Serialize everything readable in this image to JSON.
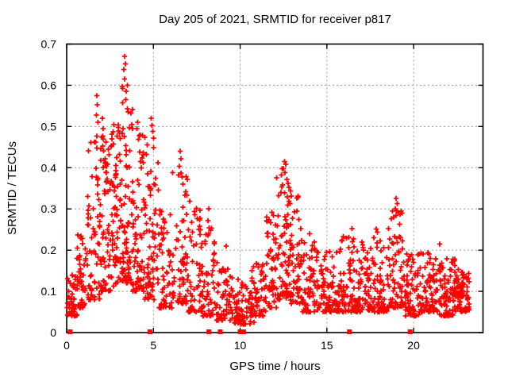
{
  "page": {
    "background": "#ffffff"
  },
  "chart_data": {
    "type": "scatter",
    "title": "Day 205 of 2021, SRMTID for receiver p817",
    "xlabel": "GPS time / hours",
    "ylabel": "SRMTID / TECUs",
    "xlim": [
      0,
      24
    ],
    "ylim": [
      0,
      0.7
    ],
    "xtick_values": [
      0,
      5,
      10,
      15,
      20
    ],
    "xtick_labels": [
      "0",
      "5",
      "10",
      "15",
      "20"
    ],
    "ytick_values": [
      0,
      0.1,
      0.2,
      0.3,
      0.4,
      0.5,
      0.6,
      0.7
    ],
    "ytick_labels": [
      "0",
      "0.1",
      "0.2",
      "0.3",
      "0.4",
      "0.5",
      "0.6",
      "0.7"
    ],
    "grid": {
      "show": true,
      "color": "#9b9b9b",
      "dash": "2 3"
    },
    "axis_color": "#000000",
    "marker": {
      "shape": "plus",
      "color": "#ff0000",
      "size": 7,
      "stroke_width": 1.8
    },
    "zero_axis_markers": {
      "shape": "filled-square",
      "color": "#ff0000",
      "size": 6,
      "x_hours": [
        0.2,
        4.8,
        8.2,
        8.85,
        10.0,
        10.1,
        10.2,
        16.3,
        19.8
      ]
    },
    "seed": 2021205,
    "density_segments": [
      {
        "x0": 0.03,
        "x1": 0.6,
        "n": 45,
        "y_min": 0.04,
        "y_max": 0.14,
        "skew": 1.6
      },
      {
        "x0": 0.6,
        "x1": 1.2,
        "n": 50,
        "y_min": 0.06,
        "y_max": 0.24,
        "skew": 1.8
      },
      {
        "x0": 1.2,
        "x1": 1.9,
        "n": 62,
        "y_min": 0.08,
        "y_max": 0.5,
        "skew": 1.9
      },
      {
        "x0": 1.9,
        "x1": 2.6,
        "n": 78,
        "y_min": 0.1,
        "y_max": 0.48,
        "skew": 1.5
      },
      {
        "x0": 2.6,
        "x1": 3.2,
        "n": 72,
        "y_min": 0.1,
        "y_max": 0.52,
        "skew": 1.5
      },
      {
        "x0": 3.2,
        "x1": 3.8,
        "n": 72,
        "y_min": 0.12,
        "y_max": 0.6,
        "skew": 1.6
      },
      {
        "x0": 3.8,
        "x1": 4.5,
        "n": 72,
        "y_min": 0.1,
        "y_max": 0.48,
        "skew": 1.7
      },
      {
        "x0": 4.5,
        "x1": 5.3,
        "n": 70,
        "y_min": 0.08,
        "y_max": 0.46,
        "skew": 1.9
      },
      {
        "x0": 5.3,
        "x1": 6.1,
        "n": 58,
        "y_min": 0.06,
        "y_max": 0.34,
        "skew": 1.9
      },
      {
        "x0": 6.1,
        "x1": 7.0,
        "n": 64,
        "y_min": 0.07,
        "y_max": 0.4,
        "skew": 2.0
      },
      {
        "x0": 7.0,
        "x1": 7.8,
        "n": 58,
        "y_min": 0.05,
        "y_max": 0.32,
        "skew": 2.0
      },
      {
        "x0": 7.8,
        "x1": 8.6,
        "n": 55,
        "y_min": 0.04,
        "y_max": 0.26,
        "skew": 2.1
      },
      {
        "x0": 8.6,
        "x1": 9.6,
        "n": 62,
        "y_min": 0.03,
        "y_max": 0.17,
        "skew": 1.7
      },
      {
        "x0": 9.6,
        "x1": 10.6,
        "n": 62,
        "y_min": 0.02,
        "y_max": 0.13,
        "skew": 1.5
      },
      {
        "x0": 10.6,
        "x1": 11.5,
        "n": 62,
        "y_min": 0.04,
        "y_max": 0.17,
        "skew": 1.6
      },
      {
        "x0": 11.5,
        "x1": 12.1,
        "n": 52,
        "y_min": 0.06,
        "y_max": 0.32,
        "skew": 1.8
      },
      {
        "x0": 12.1,
        "x1": 12.9,
        "n": 72,
        "y_min": 0.08,
        "y_max": 0.4,
        "skew": 1.5
      },
      {
        "x0": 12.9,
        "x1": 13.6,
        "n": 60,
        "y_min": 0.07,
        "y_max": 0.34,
        "skew": 1.8
      },
      {
        "x0": 13.6,
        "x1": 14.6,
        "n": 68,
        "y_min": 0.05,
        "y_max": 0.22,
        "skew": 1.8
      },
      {
        "x0": 14.6,
        "x1": 15.6,
        "n": 70,
        "y_min": 0.05,
        "y_max": 0.2,
        "skew": 1.8
      },
      {
        "x0": 15.6,
        "x1": 16.6,
        "n": 76,
        "y_min": 0.05,
        "y_max": 0.24,
        "skew": 1.9
      },
      {
        "x0": 16.6,
        "x1": 17.6,
        "n": 76,
        "y_min": 0.05,
        "y_max": 0.22,
        "skew": 1.9
      },
      {
        "x0": 17.6,
        "x1": 18.6,
        "n": 76,
        "y_min": 0.05,
        "y_max": 0.26,
        "skew": 2.0
      },
      {
        "x0": 18.6,
        "x1": 19.4,
        "n": 66,
        "y_min": 0.06,
        "y_max": 0.31,
        "skew": 1.8
      },
      {
        "x0": 19.4,
        "x1": 20.4,
        "n": 76,
        "y_min": 0.04,
        "y_max": 0.2,
        "skew": 1.8
      },
      {
        "x0": 20.4,
        "x1": 21.4,
        "n": 80,
        "y_min": 0.05,
        "y_max": 0.2,
        "skew": 1.9
      },
      {
        "x0": 21.4,
        "x1": 22.4,
        "n": 80,
        "y_min": 0.04,
        "y_max": 0.18,
        "skew": 1.8
      },
      {
        "x0": 22.4,
        "x1": 23.2,
        "n": 80,
        "y_min": 0.05,
        "y_max": 0.16,
        "skew": 1.5
      }
    ],
    "notable_points": [
      [
        3.35,
        0.67
      ],
      [
        3.38,
        0.652
      ],
      [
        3.3,
        0.638
      ],
      [
        3.33,
        0.615
      ],
      [
        3.5,
        0.6
      ],
      [
        3.44,
        0.585
      ],
      [
        3.4,
        0.565
      ],
      [
        1.74,
        0.575
      ],
      [
        1.77,
        0.553
      ],
      [
        1.71,
        0.528
      ],
      [
        1.8,
        0.51
      ],
      [
        2.05,
        0.52
      ],
      [
        2.1,
        0.495
      ],
      [
        2.6,
        0.47
      ],
      [
        4.88,
        0.52
      ],
      [
        4.92,
        0.503
      ],
      [
        4.97,
        0.488
      ],
      [
        5.02,
        0.472
      ],
      [
        4.1,
        0.51
      ],
      [
        4.05,
        0.495
      ],
      [
        4.18,
        0.478
      ],
      [
        6.55,
        0.44
      ],
      [
        6.6,
        0.422
      ],
      [
        6.5,
        0.403
      ],
      [
        6.45,
        0.382
      ],
      [
        6.7,
        0.36
      ],
      [
        12.55,
        0.415
      ],
      [
        12.62,
        0.408
      ],
      [
        12.5,
        0.398
      ],
      [
        12.58,
        0.388
      ],
      [
        12.7,
        0.372
      ],
      [
        12.45,
        0.358
      ],
      [
        12.35,
        0.34
      ],
      [
        19.0,
        0.325
      ],
      [
        19.05,
        0.313
      ],
      [
        18.95,
        0.3
      ],
      [
        19.1,
        0.292
      ],
      [
        18.85,
        0.28
      ],
      [
        8.2,
        0.3
      ],
      [
        8.15,
        0.272
      ],
      [
        9.2,
        0.21
      ],
      [
        14.0,
        0.24
      ],
      [
        17.7,
        0.23
      ],
      [
        21.5,
        0.215
      ],
      [
        16.45,
        0.252
      ],
      [
        11.05,
        0.165
      ],
      [
        22.2,
        0.17
      ],
      [
        10.3,
        0.02
      ],
      [
        10.8,
        0.025
      ],
      [
        13.95,
        0.05
      ]
    ]
  }
}
